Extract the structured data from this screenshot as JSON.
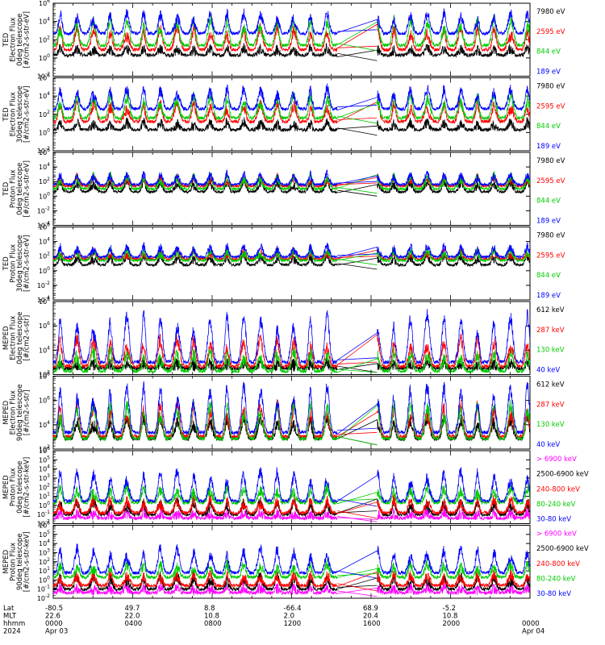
{
  "chart_data": [
    {
      "type": "line",
      "ylabel_lines": [
        "TED",
        "Electron Flux",
        "0deg telescope",
        "[#/cm2-s-str-eV]"
      ],
      "yscale": "log",
      "ylim_exp": [
        -2,
        6
      ],
      "ytick_labels": [
        "10^-2",
        "10^0",
        "10^2",
        "10^4",
        "10^6"
      ],
      "series": [
        {
          "name": "7980 eV",
          "color": "#000000",
          "level_exp": 0.3,
          "amp": 0.8
        },
        {
          "name": "2595 eV",
          "color": "#ff0000",
          "level_exp": 0.9,
          "amp": 2.4
        },
        {
          "name": "844 eV",
          "color": "#00cc00",
          "level_exp": 1.4,
          "amp": 2.8
        },
        {
          "name": "189 eV",
          "color": "#0000ff",
          "level_exp": 2.7,
          "amp": 2.2
        }
      ]
    },
    {
      "type": "line",
      "ylabel_lines": [
        "TED",
        "Electron Flux",
        "30deg telescope",
        "[#/cm2-s-str-eV]"
      ],
      "yscale": "log",
      "ylim_exp": [
        -2,
        6
      ],
      "ytick_labels": [
        "10^-2",
        "10^0",
        "10^2",
        "10^4",
        "10^6"
      ],
      "series": [
        {
          "name": "7980 eV",
          "color": "#000000",
          "level_exp": 0.3,
          "amp": 0.8
        },
        {
          "name": "2595 eV",
          "color": "#ff0000",
          "level_exp": 1.2,
          "amp": 2.0
        },
        {
          "name": "844 eV",
          "color": "#00cc00",
          "level_exp": 1.6,
          "amp": 2.4
        },
        {
          "name": "189 eV",
          "color": "#0000ff",
          "level_exp": 2.6,
          "amp": 2.2
        }
      ]
    },
    {
      "type": "line",
      "ylabel_lines": [
        "TED",
        "Proton Flux",
        "0deg telescope",
        "[#/cm2-s-str-eV]"
      ],
      "yscale": "log",
      "ylim_exp": [
        -4,
        6
      ],
      "ytick_labels": [
        "10^-4",
        "10^-2",
        "10^0",
        "10^2",
        "10^4",
        "10^6"
      ],
      "series": [
        {
          "name": "7980 eV",
          "color": "#000000",
          "level_exp": 0.6,
          "amp": 1.4
        },
        {
          "name": "2595 eV",
          "color": "#ff0000",
          "level_exp": 1.4,
          "amp": 1.2
        },
        {
          "name": "844 eV",
          "color": "#00cc00",
          "level_exp": 1.0,
          "amp": 1.8
        },
        {
          "name": "189 eV",
          "color": "#0000ff",
          "level_exp": 1.6,
          "amp": 1.4
        }
      ]
    },
    {
      "type": "line",
      "ylabel_lines": [
        "TED",
        "Proton Flux",
        "30deg telescope",
        "[#/cm2-s-str-eV]"
      ],
      "yscale": "log",
      "ylim_exp": [
        -4,
        6
      ],
      "ytick_labels": [
        "10^-4",
        "10^-2",
        "10^0",
        "10^2",
        "10^4",
        "10^6"
      ],
      "series": [
        {
          "name": "7980 eV",
          "color": "#000000",
          "level_exp": 0.8,
          "amp": 1.2
        },
        {
          "name": "2595 eV",
          "color": "#ff0000",
          "level_exp": 1.6,
          "amp": 1.0
        },
        {
          "name": "844 eV",
          "color": "#00cc00",
          "level_exp": 1.4,
          "amp": 1.4
        },
        {
          "name": "189 eV",
          "color": "#0000ff",
          "level_exp": 1.9,
          "amp": 1.4
        }
      ]
    },
    {
      "type": "line",
      "ylabel_lines": [
        "MEPED",
        "Electron Flux",
        "0deg telescope",
        "[#/cm2-s-str]"
      ],
      "yscale": "log",
      "ylim_exp": [
        1,
        8
      ],
      "ytick_labels": [
        "10^2",
        "10^4",
        "10^6",
        "10^8"
      ],
      "series": [
        {
          "name": "612 keV",
          "color": "#000000",
          "level_exp": 1.6,
          "amp": 0.5
        },
        {
          "name": "287 keV",
          "color": "#ff0000",
          "level_exp": 1.8,
          "amp": 2.6
        },
        {
          "name": "130 keV",
          "color": "#00cc00",
          "level_exp": 1.3,
          "amp": 1.8
        },
        {
          "name": "40 keV",
          "color": "#0000ff",
          "level_exp": 2.2,
          "amp": 4.5
        }
      ]
    },
    {
      "type": "line",
      "ylabel_lines": [
        "MEPED",
        "Electron Flux",
        "90deg telescope",
        "[#/cm2-s-str]"
      ],
      "yscale": "log",
      "ylim_exp": [
        1,
        8
      ],
      "ytick_labels": [
        "10^2",
        "10^4",
        "10^6",
        "10^8"
      ],
      "series": [
        {
          "name": "612 keV",
          "color": "#000000",
          "level_exp": 2.0,
          "amp": 2.0
        },
        {
          "name": "287 keV",
          "color": "#ff0000",
          "level_exp": 2.2,
          "amp": 3.0
        },
        {
          "name": "130 keV",
          "color": "#00cc00",
          "level_exp": 2.0,
          "amp": 3.4
        },
        {
          "name": "40 keV",
          "color": "#0000ff",
          "level_exp": 2.6,
          "amp": 4.4
        }
      ]
    },
    {
      "type": "line",
      "ylabel_lines": [
        "MEPED",
        "Proton Flux",
        "0deg telescope",
        "[#/cm2-s-str-keV]"
      ],
      "yscale": "log",
      "ylim_exp": [
        -2,
        6
      ],
      "ytick_labels": [
        "10^-2",
        "10^-1",
        "10^0",
        "10^1",
        "10^2",
        "10^3",
        "10^4",
        "10^5",
        "10^6"
      ],
      "series": [
        {
          "name": "> 6900 keV",
          "color": "#ff00ff",
          "level_exp": -1.4,
          "amp": 0.6
        },
        {
          "name": "2500-6900 keV",
          "color": "#000000",
          "level_exp": -1.0,
          "amp": 1.4
        },
        {
          "name": "240-800 keV",
          "color": "#ff0000",
          "level_exp": -0.8,
          "amp": 1.4
        },
        {
          "name": "80-240 keV",
          "color": "#00cc00",
          "level_exp": 0.3,
          "amp": 1.6
        },
        {
          "name": "30-80 keV",
          "color": "#0000ff",
          "level_exp": 0.5,
          "amp": 3.2
        }
      ]
    },
    {
      "type": "line",
      "ylabel_lines": [
        "MEPED",
        "Proton Flux",
        "90deg telescope",
        "[#/cm2-s-str-keV]"
      ],
      "yscale": "log",
      "ylim_exp": [
        -2,
        6
      ],
      "ytick_labels": [
        "10^-2",
        "10^-1",
        "10^0",
        "10^1",
        "10^2",
        "10^3",
        "10^4",
        "10^5",
        "10^6"
      ],
      "series": [
        {
          "name": "> 6900 keV",
          "color": "#ff00ff",
          "level_exp": -1.4,
          "amp": 0.6
        },
        {
          "name": "2500-6900 keV",
          "color": "#000000",
          "level_exp": -1.0,
          "amp": 1.4
        },
        {
          "name": "240-800 keV",
          "color": "#ff0000",
          "level_exp": -0.6,
          "amp": 1.2
        },
        {
          "name": "80-240 keV",
          "color": "#00cc00",
          "level_exp": 0.3,
          "amp": 1.4
        },
        {
          "name": "30-80 keV",
          "color": "#0000ff",
          "level_exp": 0.8,
          "amp": 2.6
        }
      ]
    }
  ],
  "x_axis": {
    "row_labels": [
      "Lat",
      "MLT",
      "hhmm",
      "2024"
    ],
    "ticks": [
      {
        "lat": "-80.5",
        "mlt": "22.6",
        "hhmm": "0000",
        "date": "Apr 03"
      },
      {
        "lat": "49.7",
        "mlt": "22.0",
        "hhmm": "0400",
        "date": ""
      },
      {
        "lat": "8.8",
        "mlt": "10.8",
        "hhmm": "0800",
        "date": ""
      },
      {
        "lat": "-66.4",
        "mlt": "2.0",
        "hhmm": "1200",
        "date": ""
      },
      {
        "lat": "68.9",
        "mlt": "20.4",
        "hhmm": "1600",
        "date": ""
      },
      {
        "lat": "-5.2",
        "mlt": "10.8",
        "hhmm": "2000",
        "date": ""
      },
      {
        "lat": "",
        "mlt": "",
        "hhmm": "0000",
        "date": "Apr 04"
      }
    ],
    "hours_range": [
      0,
      24
    ],
    "data_gap_hours": [
      14.3,
      16.3
    ]
  }
}
